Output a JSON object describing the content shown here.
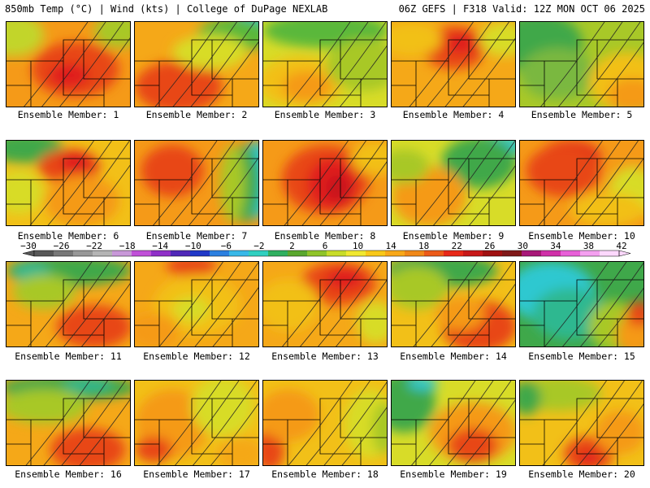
{
  "header": {
    "left": "850mb Temp (°C) | Wind (kts) | College of DuPage NEXLAB",
    "right": "06Z GEFS | F318 Valid: 12Z MON OCT 06 2025"
  },
  "member_label_prefix": "Ensemble Member: ",
  "members": [
    {
      "id": "1",
      "label": "Ensemble Member: 1",
      "base": "#f59a18",
      "blobs": [
        [
          "#e84618",
          0.55,
          0.55,
          0.35,
          0.32
        ],
        [
          "#e01a1a",
          0.5,
          0.62,
          0.16,
          0.14
        ],
        [
          "#c2d52a",
          0.05,
          0.15,
          0.25,
          0.25
        ],
        [
          "#a8c828",
          0.9,
          0.1,
          0.2,
          0.2
        ]
      ]
    },
    {
      "id": "2",
      "label": "Ensemble Member: 2",
      "base": "#f5a818",
      "blobs": [
        [
          "#e84618",
          0.35,
          0.75,
          0.35,
          0.3
        ],
        [
          "#2ec8d0",
          0.95,
          0.05,
          0.18,
          0.18
        ],
        [
          "#5ab83a",
          0.8,
          0.15,
          0.3,
          0.2
        ],
        [
          "#d8dc28",
          0.6,
          0.35,
          0.3,
          0.2
        ]
      ]
    },
    {
      "id": "3",
      "label": "Ensemble Member: 3",
      "base": "#d8dc28",
      "blobs": [
        [
          "#5ab83a",
          0.5,
          0.1,
          0.5,
          0.2
        ],
        [
          "#f2c018",
          0.3,
          0.7,
          0.35,
          0.3
        ],
        [
          "#f59a18",
          0.35,
          0.75,
          0.2,
          0.18
        ],
        [
          "#a8c828",
          0.8,
          0.5,
          0.3,
          0.3
        ]
      ]
    },
    {
      "id": "4",
      "label": "Ensemble Member: 4",
      "base": "#f5a818",
      "blobs": [
        [
          "#e84618",
          0.5,
          0.3,
          0.25,
          0.25
        ],
        [
          "#e01a1a",
          0.55,
          0.25,
          0.12,
          0.12
        ],
        [
          "#d8dc28",
          0.9,
          0.2,
          0.2,
          0.2
        ],
        [
          "#f2c018",
          0.15,
          0.2,
          0.25,
          0.2
        ]
      ]
    },
    {
      "id": "5",
      "label": "Ensemble Member: 5",
      "base": "#a8c828",
      "blobs": [
        [
          "#3fa84a",
          0.15,
          0.25,
          0.35,
          0.35
        ],
        [
          "#7ab840",
          0.3,
          0.6,
          0.3,
          0.3
        ],
        [
          "#f2c018",
          0.85,
          0.7,
          0.3,
          0.35
        ],
        [
          "#f59a18",
          0.9,
          0.85,
          0.2,
          0.2
        ]
      ]
    },
    {
      "id": "6",
      "label": "Ensemble Member: 6",
      "base": "#f2c018",
      "blobs": [
        [
          "#3fa84a",
          0.15,
          0.08,
          0.3,
          0.18
        ],
        [
          "#e84618",
          0.5,
          0.3,
          0.25,
          0.2
        ],
        [
          "#e01a1a",
          0.55,
          0.25,
          0.12,
          0.12
        ],
        [
          "#d8dc28",
          0.1,
          0.6,
          0.2,
          0.25
        ],
        [
          "#f59a18",
          0.6,
          0.7,
          0.3,
          0.3
        ]
      ]
    },
    {
      "id": "7",
      "label": "Ensemble Member: 7",
      "base": "#f59a18",
      "blobs": [
        [
          "#2ec8d0",
          0.98,
          0.45,
          0.12,
          0.45
        ],
        [
          "#3fa84a",
          0.88,
          0.5,
          0.12,
          0.45
        ],
        [
          "#a8c828",
          0.78,
          0.5,
          0.1,
          0.45
        ],
        [
          "#e84618",
          0.3,
          0.35,
          0.25,
          0.3
        ]
      ]
    },
    {
      "id": "8",
      "label": "Ensemble Member: 8",
      "base": "#f59a18",
      "blobs": [
        [
          "#e84618",
          0.5,
          0.45,
          0.35,
          0.4
        ],
        [
          "#e01a1a",
          0.55,
          0.5,
          0.2,
          0.3
        ],
        [
          "#c8161a",
          0.6,
          0.55,
          0.1,
          0.15
        ],
        [
          "#f2c018",
          0.9,
          0.2,
          0.2,
          0.2
        ]
      ]
    },
    {
      "id": "9",
      "label": "Ensemble Member: 9",
      "base": "#d8dc28",
      "blobs": [
        [
          "#2ec8d0",
          0.85,
          0.05,
          0.25,
          0.12
        ],
        [
          "#3fa84a",
          0.7,
          0.25,
          0.3,
          0.3
        ],
        [
          "#f59a18",
          0.3,
          0.65,
          0.3,
          0.35
        ],
        [
          "#a8c828",
          0.1,
          0.3,
          0.2,
          0.2
        ]
      ]
    },
    {
      "id": "10",
      "label": "Ensemble Member: 10",
      "base": "#f59a18",
      "blobs": [
        [
          "#e01a1a",
          0.4,
          0.2,
          0.25,
          0.2
        ],
        [
          "#e84618",
          0.35,
          0.35,
          0.3,
          0.3
        ],
        [
          "#d8dc28",
          0.9,
          0.6,
          0.2,
          0.3
        ],
        [
          "#f2c018",
          0.7,
          0.8,
          0.3,
          0.2
        ]
      ]
    },
    {
      "id": "11",
      "label": "Ensemble Member: 11",
      "base": "#f5a818",
      "blobs": [
        [
          "#3fa84a",
          0.5,
          0.1,
          0.5,
          0.18
        ],
        [
          "#2eb890",
          0.2,
          0.12,
          0.15,
          0.12
        ],
        [
          "#a8c828",
          0.3,
          0.35,
          0.25,
          0.2
        ],
        [
          "#e84618",
          0.7,
          0.75,
          0.3,
          0.25
        ]
      ]
    },
    {
      "id": "12",
      "label": "Ensemble Member: 12",
      "base": "#f5a818",
      "blobs": [
        [
          "#e84618",
          0.45,
          0.05,
          0.2,
          0.12
        ],
        [
          "#f2c018",
          0.5,
          0.5,
          0.35,
          0.35
        ],
        [
          "#d8dc28",
          0.45,
          0.55,
          0.15,
          0.15
        ],
        [
          "#f59a18",
          0.15,
          0.8,
          0.2,
          0.2
        ]
      ]
    },
    {
      "id": "13",
      "label": "Ensemble Member: 13",
      "base": "#f5a818",
      "blobs": [
        [
          "#e84618",
          0.6,
          0.25,
          0.3,
          0.25
        ],
        [
          "#e01a1a",
          0.65,
          0.2,
          0.15,
          0.12
        ],
        [
          "#f2c018",
          0.2,
          0.5,
          0.25,
          0.3
        ],
        [
          "#d8dc28",
          0.9,
          0.7,
          0.15,
          0.25
        ]
      ]
    },
    {
      "id": "14",
      "label": "Ensemble Member: 14",
      "base": "#f2c018",
      "blobs": [
        [
          "#3fa84a",
          0.4,
          0.1,
          0.45,
          0.2
        ],
        [
          "#a8c828",
          0.2,
          0.3,
          0.25,
          0.25
        ],
        [
          "#e84618",
          0.7,
          0.75,
          0.3,
          0.3
        ],
        [
          "#f59a18",
          0.55,
          0.6,
          0.2,
          0.2
        ]
      ]
    },
    {
      "id": "15",
      "label": "Ensemble Member: 15",
      "base": "#3fa84a",
      "blobs": [
        [
          "#2ec8d0",
          0.25,
          0.35,
          0.35,
          0.35
        ],
        [
          "#2eb890",
          0.4,
          0.6,
          0.3,
          0.3
        ],
        [
          "#a8c828",
          0.75,
          0.75,
          0.2,
          0.3
        ],
        [
          "#f59a18",
          0.92,
          0.85,
          0.15,
          0.25
        ],
        [
          "#e84618",
          0.95,
          0.6,
          0.1,
          0.15
        ]
      ]
    },
    {
      "id": "16",
      "label": "Ensemble Member: 16",
      "base": "#f5a818",
      "blobs": [
        [
          "#3fa84a",
          0.5,
          0.08,
          0.55,
          0.15
        ],
        [
          "#2eb890",
          0.65,
          0.05,
          0.2,
          0.08
        ],
        [
          "#a8c828",
          0.3,
          0.3,
          0.35,
          0.2
        ],
        [
          "#e84618",
          0.65,
          0.8,
          0.3,
          0.25
        ]
      ]
    },
    {
      "id": "17",
      "label": "Ensemble Member: 17",
      "base": "#f2c018",
      "blobs": [
        [
          "#f59a18",
          0.3,
          0.5,
          0.3,
          0.4
        ],
        [
          "#e84618",
          0.15,
          0.8,
          0.15,
          0.15
        ],
        [
          "#d8dc28",
          0.7,
          0.3,
          0.25,
          0.35
        ],
        [
          "#f5a818",
          0.85,
          0.85,
          0.2,
          0.2
        ]
      ]
    },
    {
      "id": "18",
      "label": "Ensemble Member: 18",
      "base": "#f2c018",
      "blobs": [
        [
          "#e84618",
          0.05,
          0.8,
          0.12,
          0.25
        ],
        [
          "#f59a18",
          0.2,
          0.4,
          0.25,
          0.3
        ],
        [
          "#d8dc28",
          0.85,
          0.5,
          0.2,
          0.4
        ],
        [
          "#a8c828",
          0.97,
          0.55,
          0.1,
          0.3
        ]
      ]
    },
    {
      "id": "19",
      "label": "Ensemble Member: 19",
      "base": "#d8dc28",
      "blobs": [
        [
          "#3fa84a",
          0.1,
          0.25,
          0.25,
          0.35
        ],
        [
          "#2ec8d0",
          0.25,
          0.03,
          0.12,
          0.08
        ],
        [
          "#f59a18",
          0.65,
          0.6,
          0.35,
          0.35
        ],
        [
          "#e84618",
          0.65,
          0.75,
          0.2,
          0.2
        ]
      ]
    },
    {
      "id": "20",
      "label": "Ensemble Member: 20",
      "base": "#f2c018",
      "blobs": [
        [
          "#a8c828",
          0.3,
          0.15,
          0.35,
          0.2
        ],
        [
          "#3fa84a",
          0.05,
          0.2,
          0.12,
          0.2
        ],
        [
          "#e84618",
          0.55,
          0.85,
          0.2,
          0.2
        ],
        [
          "#e01a1a",
          0.55,
          0.9,
          0.08,
          0.08
        ],
        [
          "#f59a18",
          0.8,
          0.6,
          0.2,
          0.25
        ]
      ]
    }
  ],
  "colorbar": {
    "ticks": [
      "-30",
      "-26",
      "-22",
      "-18",
      "-14",
      "-10",
      "-6",
      "-2",
      "2",
      "6",
      "10",
      "14",
      "18",
      "22",
      "26",
      "30",
      "34",
      "38",
      "42"
    ],
    "colors": [
      "#585858",
      "#787878",
      "#989898",
      "#b4b4b4",
      "#c898d8",
      "#c050d8",
      "#9030c8",
      "#5028b8",
      "#2038c8",
      "#2c80e0",
      "#38b8e8",
      "#30d0c0",
      "#30b060",
      "#5aa82e",
      "#90c428",
      "#c8dc28",
      "#f0e830",
      "#f8c818",
      "#f8a818",
      "#f08818",
      "#ec5a18",
      "#e82818",
      "#c81818",
      "#a01010",
      "#801818",
      "#a81878",
      "#d030a8",
      "#e860d8",
      "#f4a0f0",
      "#fcd8fc"
    ]
  }
}
